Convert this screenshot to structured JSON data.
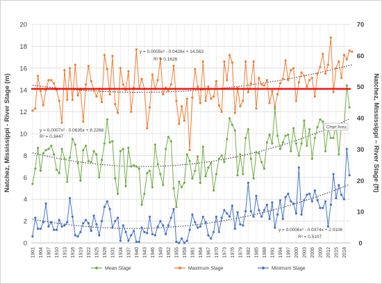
{
  "chart_data": {
    "type": "line",
    "title": "",
    "ylabel": "Natchez, Mississippi - River Stage (m)",
    "ylabel_right": "Natchez, Mississippi – River Stage (ft)",
    "xlabel": "",
    "x_start": 1901,
    "x_end": 2020,
    "ylim": [
      0,
      20
    ],
    "ylim_right": [
      0,
      70
    ],
    "yticks": [
      "0",
      "2",
      "4",
      "6",
      "8",
      "10",
      "12",
      "14",
      "16",
      "18",
      "20"
    ],
    "yticks_right": [
      "0",
      "10",
      "20",
      "30",
      "40",
      "50",
      "60",
      "70"
    ],
    "xticks": [
      "1901",
      "1904",
      "1907",
      "1910",
      "1913",
      "1916",
      "1919",
      "1922",
      "1925",
      "1928",
      "1931",
      "1934",
      "1937",
      "1940",
      "1943",
      "1946",
      "1949",
      "1952",
      "1955",
      "1958",
      "1961",
      "1964",
      "1967",
      "1970",
      "1973",
      "1976",
      "1979",
      "1982",
      "1985",
      "1988",
      "1991",
      "1994",
      "1997",
      "2000",
      "2003",
      "2006",
      "2009",
      "2012",
      "2015",
      "2018"
    ],
    "reference_line": {
      "y": 14.1,
      "color": "#ff0000"
    },
    "grid": true,
    "legend": "bottom",
    "chart_area_label": "Chart Area",
    "series": [
      {
        "name": "Mean Stage",
        "color": "#70ad47",
        "trend_color": "#404040",
        "equation": "y = 0.0007x² - 0.0635x + 8.2288",
        "r2": "R² = 0.3447",
        "values": [
          5.4,
          6.8,
          8.7,
          6.6,
          8.2,
          8.5,
          8.6,
          8.9,
          8.1,
          6.7,
          6.4,
          8.6,
          7.7,
          5.6,
          7.8,
          9.5,
          9.0,
          7.3,
          5.7,
          8.5,
          8.9,
          7.5,
          7.4,
          8.4,
          8.1,
          6.0,
          7.6,
          9.1,
          11.3,
          9.2,
          9.3,
          5.9,
          4.5,
          8.4,
          8.6,
          5.2,
          8.7,
          7.0,
          7.1,
          7.0,
          6.8,
          3.5,
          4.5,
          6.4,
          6.6,
          5.1,
          9.0,
          7.2,
          6.3,
          5.3,
          8.6,
          9.7,
          9.3,
          5.0,
          3.3,
          5.6,
          5.1,
          5.5,
          8.1,
          7.5,
          5.9,
          6.6,
          7.9,
          5.5,
          8.8,
          6.1,
          6.9,
          7.3,
          4.8,
          6.3,
          7.7,
          8.0,
          7.4,
          9.5,
          11.4,
          10.8,
          10.3,
          6.2,
          8.1,
          6.3,
          9.6,
          10.4,
          7.7,
          5.9,
          8.3,
          8.2,
          7.4,
          6.8,
          9.2,
          9.9,
          9.1,
          12.3,
          9.8,
          8.6,
          9.2,
          9.8,
          9.9,
          8.4,
          10.5,
          9.1,
          8.0,
          9.1,
          11.2,
          8.9,
          10.4,
          7.7,
          9.6,
          10.6,
          11.3,
          11.1,
          8.4,
          10.5,
          9.6,
          9.6,
          10.8,
          8.1,
          10.9,
          10.6,
          14.4,
          12.4
        ]
      },
      {
        "name": "Maximum Stage",
        "color": "#ed7d31",
        "trend_color": "#404040",
        "equation": "y = 0.0005x² - 0.0428x + 14.563",
        "r2": "R² = 0.1626",
        "values": [
          12.1,
          12.3,
          15.3,
          13.9,
          12.6,
          14.0,
          14.9,
          14.9,
          14.6,
          14.0,
          13.0,
          11.0,
          15.8,
          13.1,
          16.0,
          13.1,
          16.3,
          13.5,
          14.1,
          11.1,
          14.5,
          16.2,
          14.8,
          14.0,
          13.4,
          14.1,
          12.9,
          17.2,
          15.9,
          13.6,
          17.1,
          12.7,
          11.9,
          16.0,
          14.5,
          14.0,
          15.7,
          12.0,
          14.2,
          17.7,
          14.1,
          15.0,
          14.1,
          10.5,
          12.4,
          15.4,
          14.1,
          14.9,
          16.9,
          13.6,
          14.2,
          13.9,
          14.5,
          16.2,
          13.0,
          10.9,
          12.5,
          11.2,
          13.2,
          8.5,
          13.3,
          15.9,
          14.3,
          12.8,
          16.6,
          13.0,
          14.3,
          13.2,
          13.4,
          14.8,
          12.6,
          12.0,
          16.6,
          14.9,
          17.2,
          16.5,
          11.9,
          14.2,
          12.5,
          13.0,
          16.6,
          13.8,
          14.6,
          16.6,
          12.3,
          15.1,
          14.5,
          14.4,
          14.9,
          12.8,
          13.9,
          12.5,
          13.6,
          14.6,
          15.0,
          16.7,
          14.9,
          15.8,
          16.0,
          13.0,
          14.7,
          15.6,
          15.3,
          14.3,
          14.9,
          15.1,
          13.4,
          15.5,
          16.1,
          17.3,
          15.5,
          16.3,
          18.8,
          13.8,
          16.0,
          16.6,
          15.1,
          17.2,
          16.8,
          17.6,
          17.5
        ]
      },
      {
        "name": "Minimum Stage",
        "color": "#4472c4",
        "trend_color": "#404040",
        "equation": "y = 0.0006x² - 0.0374x + 2.0106",
        "r2": "R² = 0.5107",
        "values": [
          0.6,
          2.3,
          1.3,
          1.3,
          1.9,
          3.6,
          1.5,
          1.9,
          1.2,
          1.2,
          2.1,
          1.5,
          1.6,
          1.9,
          4.1,
          2.4,
          0.7,
          0.6,
          1.0,
          1.8,
          2.1,
          1.8,
          1.1,
          2.5,
          1.7,
          0.7,
          2.0,
          3.3,
          3.8,
          3.1,
          1.4,
          2.0,
          2.3,
          0.2,
          1.6,
          1.0,
          0.2,
          0.7,
          1.1,
          0.1,
          0.1,
          1.4,
          1.0,
          0.9,
          2.4,
          0.8,
          0.7,
          1.5,
          2.0,
          1.6,
          0.8,
          1.6,
          2.3,
          3.1,
          0.1,
          0.0,
          0.4,
          0.0,
          0.2,
          1.2,
          2.6,
          1.9,
          1.4,
          1.5,
          2.4,
          1.9,
          0.7,
          0.4,
          1.0,
          2.4,
          1.0,
          2.3,
          3.0,
          2.7,
          2.4,
          3.4,
          1.3,
          2.8,
          1.7,
          1.6,
          2.9,
          5.5,
          2.9,
          2.4,
          4.3,
          3.0,
          2.4,
          3.0,
          3.5,
          2.2,
          3.7,
          1.4,
          2.6,
          3.9,
          2.2,
          4.2,
          4.5,
          3.8,
          3.6,
          2.7,
          6.9,
          2.6,
          3.9,
          4.4,
          4.5,
          3.8,
          4.8,
          3.9,
          3.2,
          3.2,
          3.8,
          1.5,
          3.5,
          6.3,
          4.1,
          5.3,
          4.4,
          4.0,
          8.6,
          6.2
        ]
      }
    ]
  }
}
